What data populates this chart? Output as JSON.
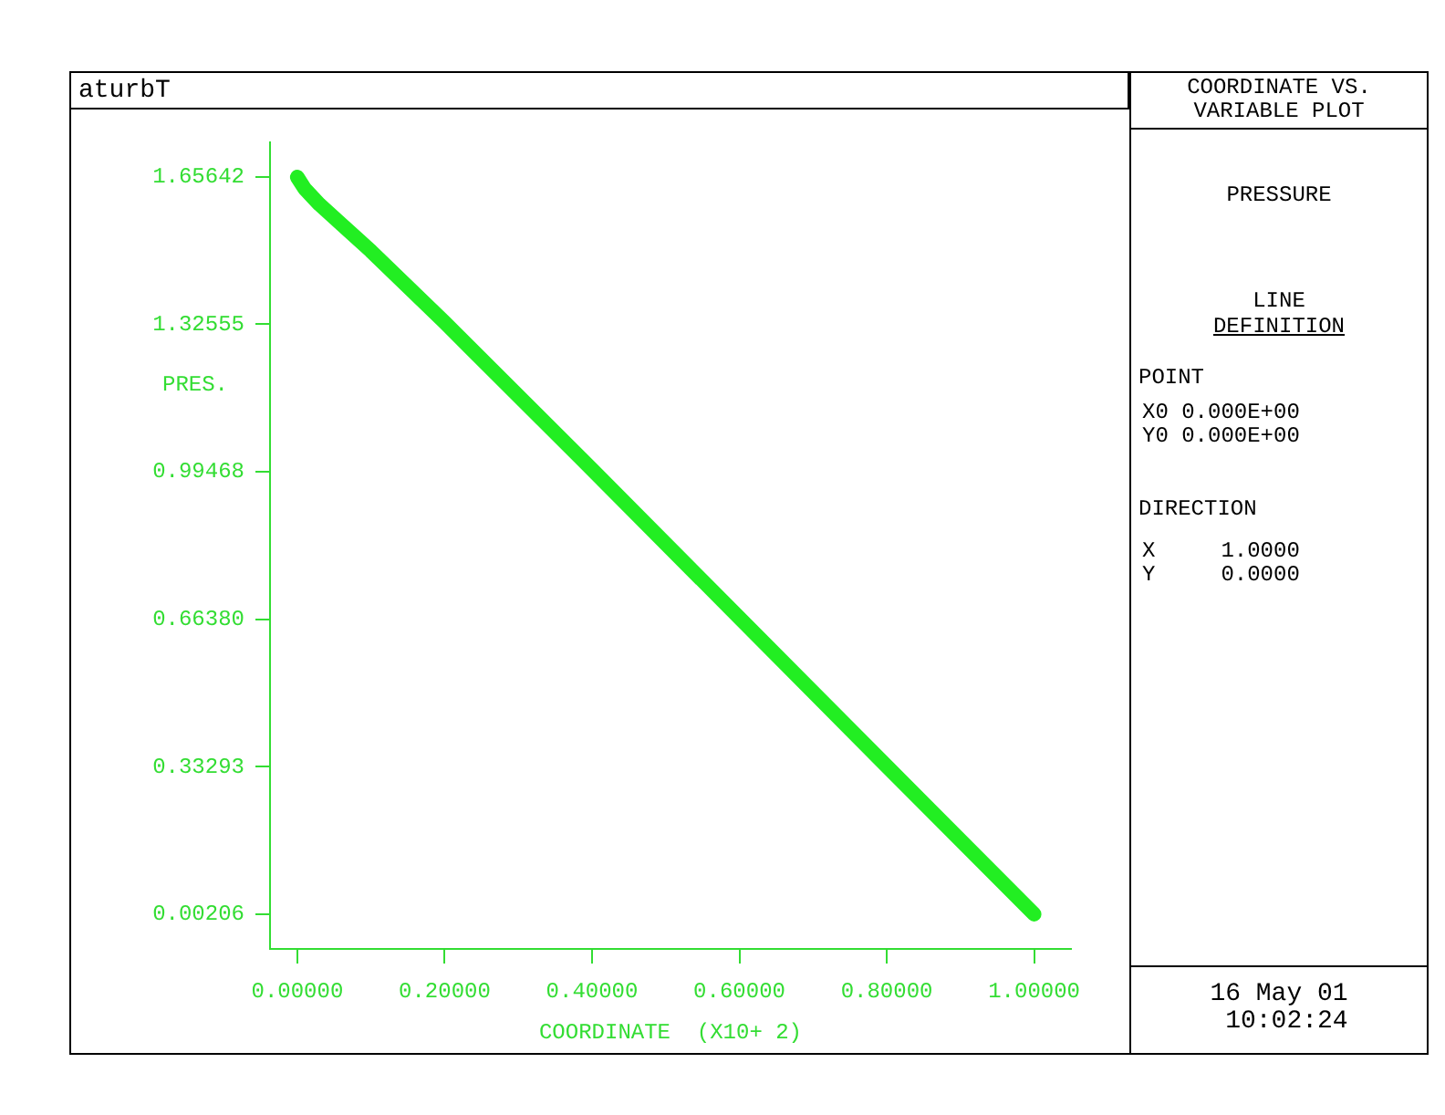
{
  "chart_data": {
    "type": "line",
    "title": "aturbT",
    "xlabel": "COORDINATE  (X10+ 2)",
    "ylabel": "PRES.",
    "x": [
      0,
      0.01,
      0.03,
      0.06,
      0.1,
      0.2,
      0.4,
      0.6,
      0.8,
      1.0
    ],
    "series": [
      {
        "color": "#22ee22",
        "values": [
          1.656,
          1.63,
          1.595,
          1.55,
          1.49,
          1.33,
          1.0,
          0.667,
          0.334,
          0.002
        ]
      }
    ],
    "xlim": [
      -0.037,
      1.05
    ],
    "ylim": [
      -0.076,
      1.734
    ],
    "xticks": [
      {
        "value": 0,
        "label": "0.00000"
      },
      {
        "value": 0.2,
        "label": "0.20000"
      },
      {
        "value": 0.4,
        "label": "0.40000"
      },
      {
        "value": 0.6,
        "label": "0.60000"
      },
      {
        "value": 0.8,
        "label": "0.80000"
      },
      {
        "value": 1,
        "label": "1.00000"
      }
    ],
    "yticks": [
      {
        "value": 0.00206,
        "label": "0.00206"
      },
      {
        "value": 0.33293,
        "label": "0.33293"
      },
      {
        "value": 0.6638,
        "label": "0.66380"
      },
      {
        "value": 0.99468,
        "label": "0.99468"
      },
      {
        "value": 1.32555,
        "label": "1.32555"
      },
      {
        "value": 1.65642,
        "label": "1.65642"
      }
    ],
    "grid": false,
    "legend": false,
    "marker": "none",
    "line_style": "solid",
    "annotations": [
      "COORDINATE VS.\nVARIABLE PLOT",
      "PRESSURE",
      "LINE",
      "DEFINITION",
      "POINT",
      "X0 0.000E+00\nY0 0.000E+00",
      "DIRECTION",
      "X     1.0000\nY     0.0000",
      "16 May 01\n 10:02:24"
    ]
  }
}
